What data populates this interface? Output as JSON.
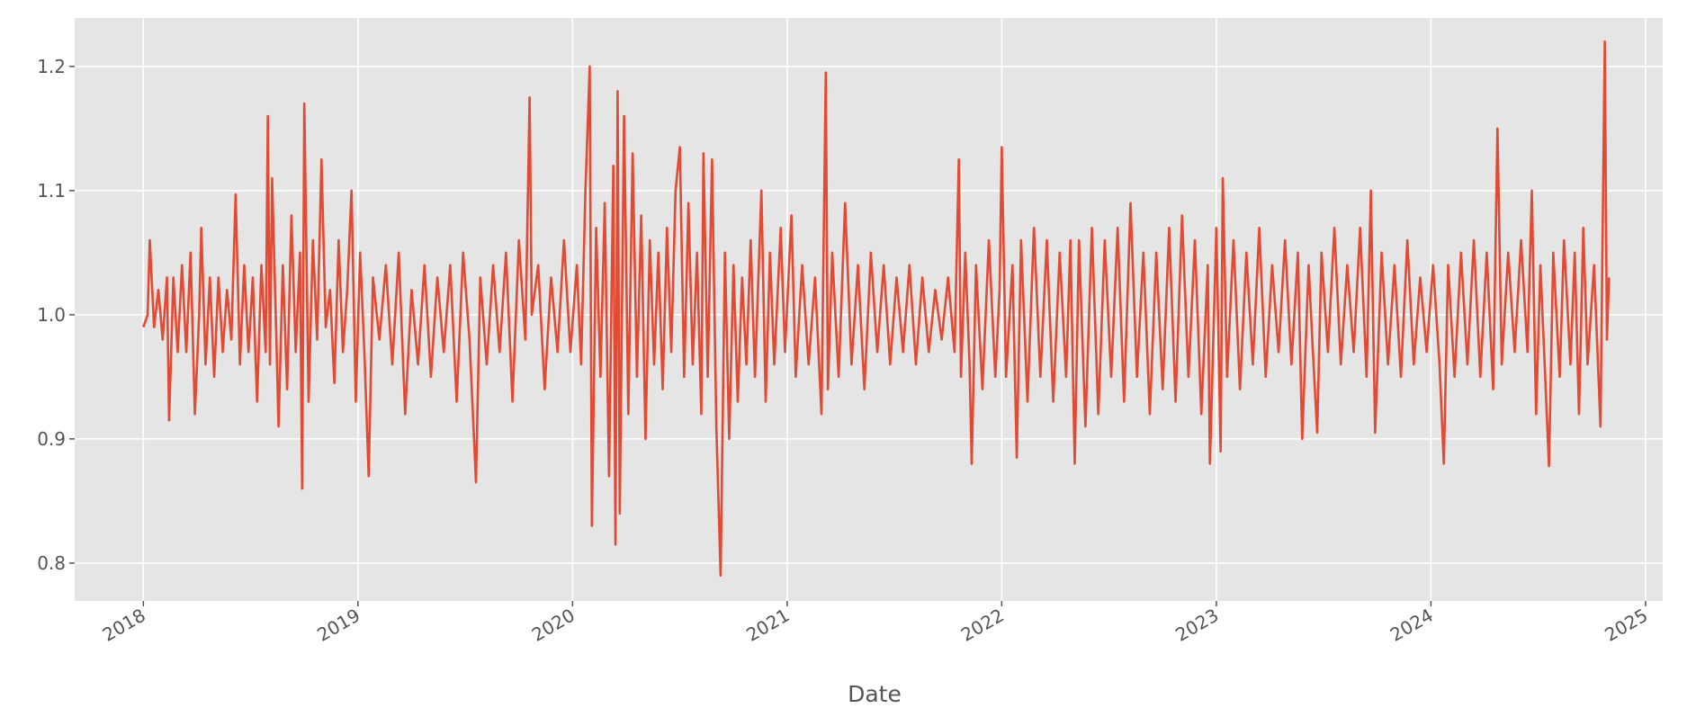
{
  "chart_data": {
    "type": "line",
    "xlabel": "Date",
    "color": "#e24a33",
    "grid": true,
    "xlim": [
      2017.68,
      2025.08
    ],
    "xticks": [
      2018,
      2019,
      2020,
      2021,
      2022,
      2023,
      2024,
      2025
    ],
    "ylim": [
      0.7695,
      1.239
    ],
    "yticks": [
      0.8,
      0.9,
      {
        "value": 1,
        "label": "1.0"
      },
      1.1,
      1.2
    ],
    "x": [
      2018.0,
      2018.02,
      2018.03,
      2018.05,
      2018.07,
      2018.09,
      2018.11,
      2018.12,
      2018.14,
      2018.16,
      2018.18,
      2018.2,
      2018.22,
      2018.24,
      2018.26,
      2018.27,
      2018.29,
      2018.31,
      2018.33,
      2018.35,
      2018.37,
      2018.39,
      2018.41,
      2018.43,
      2018.45,
      2018.47,
      2018.49,
      2018.51,
      2018.53,
      2018.55,
      2018.57,
      2018.58,
      2018.59,
      2018.6,
      2018.62,
      2018.63,
      2018.65,
      2018.67,
      2018.69,
      2018.71,
      2018.73,
      2018.74,
      2018.75,
      2018.77,
      2018.79,
      2018.81,
      2018.83,
      2018.85,
      2018.87,
      2018.89,
      2018.91,
      2018.93,
      2018.95,
      2018.97,
      2018.99,
      2019.01,
      2019.03,
      2019.05,
      2019.07,
      2019.1,
      2019.13,
      2019.16,
      2019.19,
      2019.22,
      2019.25,
      2019.28,
      2019.31,
      2019.34,
      2019.37,
      2019.4,
      2019.43,
      2019.46,
      2019.49,
      2019.52,
      2019.55,
      2019.57,
      2019.6,
      2019.63,
      2019.66,
      2019.69,
      2019.72,
      2019.75,
      2019.78,
      2019.8,
      2019.81,
      2019.84,
      2019.87,
      2019.9,
      2019.93,
      2019.96,
      2019.99,
      2020.02,
      2020.04,
      2020.06,
      2020.08,
      2020.09,
      2020.11,
      2020.13,
      2020.15,
      2020.17,
      2020.19,
      2020.2,
      2020.21,
      2020.22,
      2020.24,
      2020.26,
      2020.28,
      2020.3,
      2020.32,
      2020.34,
      2020.36,
      2020.38,
      2020.4,
      2020.42,
      2020.44,
      2020.46,
      2020.48,
      2020.5,
      2020.52,
      2020.54,
      2020.56,
      2020.58,
      2020.6,
      2020.61,
      2020.63,
      2020.65,
      2020.67,
      2020.69,
      2020.71,
      2020.73,
      2020.75,
      2020.77,
      2020.79,
      2020.81,
      2020.83,
      2020.85,
      2020.88,
      2020.9,
      2020.92,
      2020.94,
      2020.97,
      2020.99,
      2021.02,
      2021.04,
      2021.07,
      2021.1,
      2021.13,
      2021.16,
      2021.18,
      2021.19,
      2021.21,
      2021.24,
      2021.27,
      2021.3,
      2021.33,
      2021.36,
      2021.39,
      2021.42,
      2021.45,
      2021.48,
      2021.51,
      2021.54,
      2021.57,
      2021.6,
      2021.63,
      2021.66,
      2021.69,
      2021.72,
      2021.75,
      2021.78,
      2021.8,
      2021.81,
      2021.83,
      2021.85,
      2021.86,
      2021.88,
      2021.91,
      2021.94,
      2021.97,
      2021.99,
      2022.0,
      2022.02,
      2022.05,
      2022.07,
      2022.09,
      2022.12,
      2022.15,
      2022.18,
      2022.21,
      2022.24,
      2022.27,
      2022.3,
      2022.32,
      2022.34,
      2022.36,
      2022.39,
      2022.42,
      2022.45,
      2022.48,
      2022.51,
      2022.54,
      2022.57,
      2022.6,
      2022.63,
      2022.66,
      2022.69,
      2022.72,
      2022.75,
      2022.78,
      2022.81,
      2022.84,
      2022.87,
      2022.9,
      2022.93,
      2022.96,
      2022.97,
      2023.0,
      2023.02,
      2023.03,
      2023.05,
      2023.08,
      2023.11,
      2023.14,
      2023.17,
      2023.2,
      2023.23,
      2023.26,
      2023.29,
      2023.32,
      2023.35,
      2023.38,
      2023.4,
      2023.43,
      2023.45,
      2023.47,
      2023.49,
      2023.52,
      2023.55,
      2023.58,
      2023.61,
      2023.64,
      2023.67,
      2023.7,
      2023.72,
      2023.74,
      2023.77,
      2023.8,
      2023.83,
      2023.86,
      2023.89,
      2023.92,
      2023.95,
      2023.98,
      2024.01,
      2024.04,
      2024.06,
      2024.08,
      2024.11,
      2024.14,
      2024.17,
      2024.2,
      2024.23,
      2024.26,
      2024.29,
      2024.31,
      2024.33,
      2024.36,
      2024.39,
      2024.42,
      2024.45,
      2024.47,
      2024.49,
      2024.51,
      2024.53,
      2024.55,
      2024.57,
      2024.6,
      2024.62,
      2024.65,
      2024.67,
      2024.69,
      2024.71,
      2024.73,
      2024.76,
      2024.79,
      2024.81,
      2024.82,
      2024.83
    ],
    "values": [
      0.99,
      1.0,
      1.06,
      0.99,
      1.02,
      0.98,
      1.03,
      0.915,
      1.03,
      0.97,
      1.04,
      0.97,
      1.05,
      0.92,
      1.0,
      1.07,
      0.96,
      1.03,
      0.95,
      1.03,
      0.97,
      1.02,
      0.98,
      1.097,
      0.96,
      1.04,
      0.97,
      1.03,
      0.93,
      1.04,
      0.97,
      1.16,
      0.96,
      1.11,
      0.98,
      0.91,
      1.04,
      0.94,
      1.08,
      0.97,
      1.05,
      0.86,
      1.17,
      0.93,
      1.06,
      0.98,
      1.125,
      0.99,
      1.02,
      0.945,
      1.06,
      0.97,
      1.02,
      1.1,
      0.93,
      1.05,
      0.97,
      0.87,
      1.03,
      0.98,
      1.04,
      0.96,
      1.05,
      0.92,
      1.02,
      0.96,
      1.04,
      0.95,
      1.03,
      0.97,
      1.04,
      0.93,
      1.05,
      0.98,
      0.865,
      1.03,
      0.96,
      1.04,
      0.97,
      1.05,
      0.93,
      1.06,
      0.98,
      1.175,
      1.0,
      1.04,
      0.94,
      1.03,
      0.97,
      1.06,
      0.97,
      1.04,
      0.96,
      1.1,
      1.2,
      0.83,
      1.07,
      0.95,
      1.09,
      0.87,
      1.12,
      0.815,
      1.18,
      0.84,
      1.16,
      0.92,
      1.13,
      0.95,
      1.08,
      0.9,
      1.06,
      0.96,
      1.05,
      0.94,
      1.07,
      0.97,
      1.1,
      1.135,
      0.95,
      1.09,
      0.96,
      1.05,
      0.92,
      1.13,
      0.95,
      1.125,
      0.91,
      0.79,
      1.05,
      0.9,
      1.04,
      0.93,
      1.03,
      0.96,
      1.06,
      0.95,
      1.1,
      0.93,
      1.05,
      0.96,
      1.07,
      0.97,
      1.08,
      0.95,
      1.04,
      0.96,
      1.03,
      0.92,
      1.195,
      0.94,
      1.05,
      0.95,
      1.09,
      0.96,
      1.04,
      0.94,
      1.05,
      0.97,
      1.04,
      0.96,
      1.03,
      0.97,
      1.04,
      0.96,
      1.03,
      0.97,
      1.02,
      0.98,
      1.03,
      0.97,
      1.125,
      0.95,
      1.05,
      0.96,
      0.88,
      1.04,
      0.94,
      1.06,
      0.95,
      1.02,
      1.135,
      0.95,
      1.04,
      0.885,
      1.06,
      0.93,
      1.07,
      0.95,
      1.06,
      0.93,
      1.05,
      0.95,
      1.06,
      0.88,
      1.06,
      0.91,
      1.07,
      0.92,
      1.06,
      0.95,
      1.07,
      0.93,
      1.09,
      0.95,
      1.05,
      0.92,
      1.05,
      0.94,
      1.07,
      0.93,
      1.08,
      0.95,
      1.06,
      0.92,
      1.04,
      0.88,
      1.07,
      0.89,
      1.11,
      0.95,
      1.06,
      0.94,
      1.05,
      0.96,
      1.07,
      0.95,
      1.04,
      0.97,
      1.06,
      0.96,
      1.05,
      0.9,
      1.04,
      0.97,
      0.905,
      1.05,
      0.97,
      1.07,
      0.96,
      1.04,
      0.97,
      1.07,
      0.95,
      1.1,
      0.905,
      1.05,
      0.96,
      1.04,
      0.95,
      1.06,
      0.96,
      1.03,
      0.97,
      1.04,
      0.96,
      0.88,
      1.04,
      0.95,
      1.05,
      0.96,
      1.06,
      0.95,
      1.05,
      0.94,
      1.15,
      0.96,
      1.05,
      0.97,
      1.06,
      0.97,
      1.1,
      0.92,
      1.04,
      0.96,
      0.878,
      1.05,
      0.95,
      1.06,
      0.96,
      1.05,
      0.92,
      1.07,
      0.96,
      1.04,
      0.91,
      1.22,
      0.98,
      1.03
    ]
  }
}
